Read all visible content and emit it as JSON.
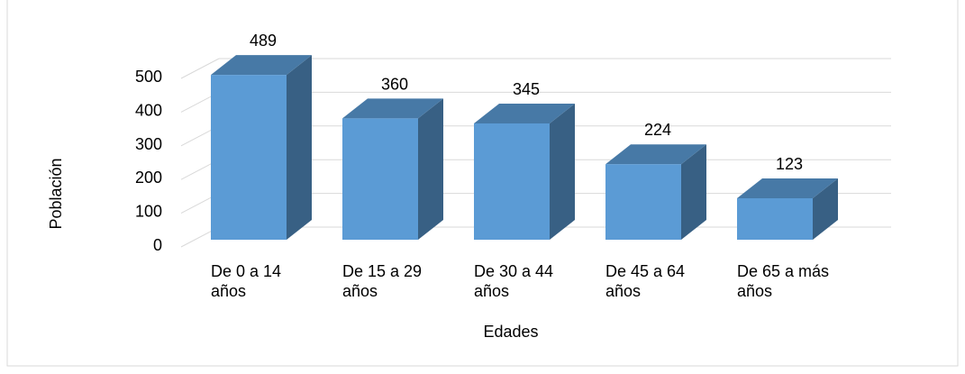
{
  "chart_data": {
    "type": "bar3d",
    "categories": [
      "De 0 a 14 años",
      "De 15 a 29 años",
      "De 30 a 44 años",
      "De 45 a 64 años",
      "De 65 a más años"
    ],
    "values": [
      489,
      360,
      345,
      224,
      123
    ],
    "color": "#5b9bd5",
    "ylim": [
      0,
      500
    ],
    "yticks": [
      0,
      100,
      200,
      300,
      400,
      500
    ],
    "grid": true,
    "xlabel": "Edades",
    "ylabel": "Población"
  }
}
